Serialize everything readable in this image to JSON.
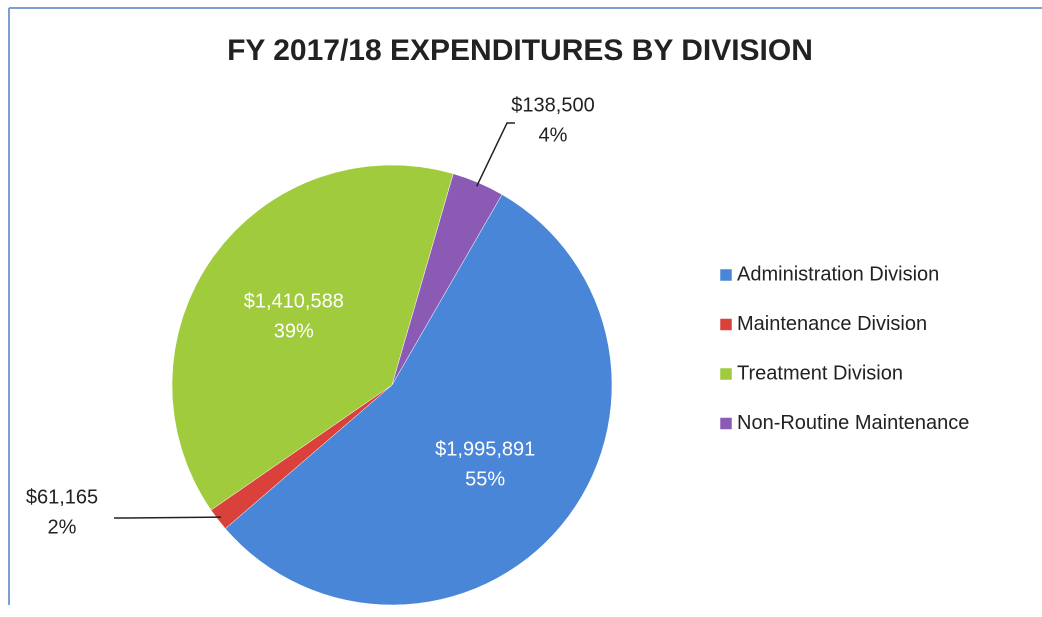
{
  "chart_data": {
    "type": "pie",
    "title": "FY 2017/18 EXPENDITURES BY DIVISION",
    "categories": [
      "Administration Division",
      "Maintenance Division",
      "Treatment Division",
      "Non-Routine Maintenance"
    ],
    "values": [
      1995891,
      61165,
      1410588,
      138500
    ],
    "value_labels": [
      "$1,995,891",
      "$61,165",
      "$1,410,588",
      "$138,500"
    ],
    "percent_labels": [
      "55%",
      "2%",
      "39%",
      "4%"
    ],
    "colors": [
      "#4a86d8",
      "#d9413a",
      "#9fcb3c",
      "#8a5ab5"
    ],
    "start_angle": 30,
    "legend": "right"
  }
}
